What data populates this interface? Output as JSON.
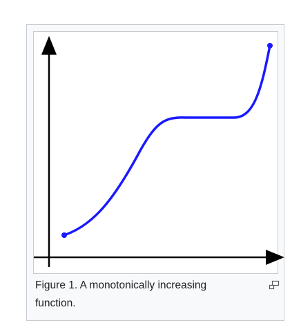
{
  "figure": {
    "caption": "Figure 1. A monotonically increasing function.",
    "enlarge_icon": "enlarge-icon"
  },
  "colors": {
    "curve": "#1a1aff",
    "axes": "#000000",
    "frame_border": "#c8ccd1",
    "frame_background": "#f8f9fa",
    "caption_text": "#202122"
  }
}
